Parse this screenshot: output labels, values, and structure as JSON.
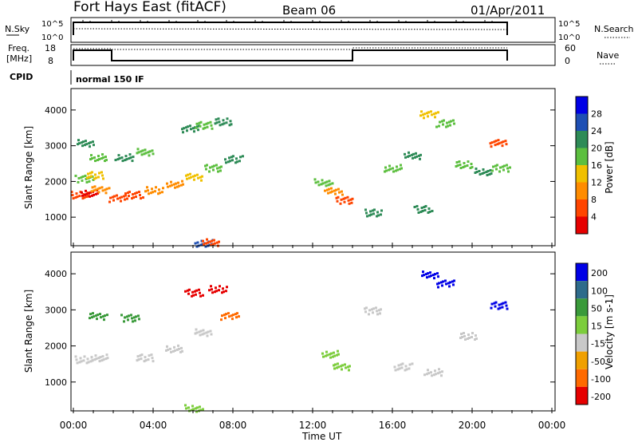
{
  "header": {
    "station": "Fort Hays East (fitACF)",
    "beam": "Beam 06",
    "date": "01/Apr/2011"
  },
  "panels": {
    "nsky_label": "N.Sky",
    "nsearch_label": "N.Search",
    "freq_label_1": "Freq.",
    "freq_label_2": "[MHz]",
    "nave_label": "Nave",
    "cpid_label": "CPID",
    "cpid_value": "normal 150 IF",
    "nsky_ticks": [
      "10^5",
      "10^0"
    ],
    "freq_ticks": [
      "18",
      "8"
    ],
    "nave_ticks": [
      "60",
      "0"
    ]
  },
  "colors": {
    "power": [
      "#0000e6",
      "#1e4fb4",
      "#2e8b57",
      "#5cbf3f",
      "#f0c000",
      "#ff8c00",
      "#ff4500",
      "#e60000"
    ],
    "velocity": [
      "#0000e6",
      "#2e6b8b",
      "#3a9a3a",
      "#7ccd3c",
      "#c8c8c8",
      "#f0a000",
      "#ff6a00",
      "#e60000"
    ]
  },
  "chart_data": [
    {
      "type": "heatmap",
      "title": "Power",
      "xlabel": "Time UT",
      "ylabel": "Slant Range [km]",
      "colorbar_label": "Power [dB]",
      "colorbar_ticks": [
        "28",
        "24",
        "20",
        "16",
        "12",
        "8",
        "4"
      ],
      "x_ticks": [
        "00:00",
        "04:00",
        "08:00",
        "12:00",
        "16:00",
        "20:00",
        "00:00"
      ],
      "y_ticks": [
        "1000",
        "2000",
        "3000",
        "4000"
      ],
      "xlim_hours": [
        0,
        24
      ],
      "ylim_km": [
        200,
        4600
      ],
      "cells": [
        {
          "t": 0.3,
          "r": 1650,
          "level": 6
        },
        {
          "t": 0.8,
          "r": 1700,
          "level": 7
        },
        {
          "t": 1.3,
          "r": 1800,
          "level": 5
        },
        {
          "t": 0.5,
          "r": 2100,
          "level": 3
        },
        {
          "t": 1.0,
          "r": 2200,
          "level": 4
        },
        {
          "t": 1.2,
          "r": 2700,
          "level": 3
        },
        {
          "t": 0.6,
          "r": 3100,
          "level": 2
        },
        {
          "t": 2.2,
          "r": 1550,
          "level": 6
        },
        {
          "t": 3.0,
          "r": 1650,
          "level": 6
        },
        {
          "t": 4.0,
          "r": 1780,
          "level": 5
        },
        {
          "t": 5.0,
          "r": 1950,
          "level": 5
        },
        {
          "t": 6.0,
          "r": 2150,
          "level": 4
        },
        {
          "t": 7.0,
          "r": 2400,
          "level": 3
        },
        {
          "t": 8.0,
          "r": 2650,
          "level": 2
        },
        {
          "t": 2.5,
          "r": 2700,
          "level": 2
        },
        {
          "t": 3.5,
          "r": 2850,
          "level": 3
        },
        {
          "t": 5.8,
          "r": 3500,
          "level": 2
        },
        {
          "t": 6.5,
          "r": 3600,
          "level": 3
        },
        {
          "t": 7.5,
          "r": 3700,
          "level": 2
        },
        {
          "t": 12.5,
          "r": 2000,
          "level": 3
        },
        {
          "t": 13.0,
          "r": 1750,
          "level": 5
        },
        {
          "t": 13.5,
          "r": 1500,
          "level": 6
        },
        {
          "t": 15.0,
          "r": 1150,
          "level": 2
        },
        {
          "t": 16.0,
          "r": 2400,
          "level": 3
        },
        {
          "t": 17.0,
          "r": 2750,
          "level": 2
        },
        {
          "t": 17.8,
          "r": 3900,
          "level": 4
        },
        {
          "t": 18.6,
          "r": 3650,
          "level": 3
        },
        {
          "t": 19.5,
          "r": 2500,
          "level": 3
        },
        {
          "t": 20.5,
          "r": 2300,
          "level": 2
        },
        {
          "t": 21.3,
          "r": 3100,
          "level": 6
        },
        {
          "t": 21.4,
          "r": 2400,
          "level": 3
        },
        {
          "t": 17.5,
          "r": 1250,
          "level": 2
        },
        {
          "t": 6.5,
          "r": 300,
          "level": 1
        },
        {
          "t": 6.8,
          "r": 320,
          "level": 6
        }
      ]
    },
    {
      "type": "heatmap",
      "title": "Velocity",
      "xlabel": "Time UT",
      "ylabel": "Slant Range [km]",
      "colorbar_label": "Velocity [m s-1]",
      "colorbar_ticks": [
        "200",
        "100",
        "50",
        "15",
        "-15",
        "-50",
        "-100",
        "-200"
      ],
      "x_ticks": [
        "00:00",
        "04:00",
        "08:00",
        "12:00",
        "16:00",
        "20:00",
        "00:00"
      ],
      "y_ticks": [
        "1000",
        "2000",
        "3000",
        "4000"
      ],
      "xlim_hours": [
        0,
        24
      ],
      "ylim_km": [
        200,
        4600
      ],
      "cells": [
        {
          "t": 0.5,
          "r": 1650,
          "level": 4
        },
        {
          "t": 1.3,
          "r": 1700,
          "level": 4
        },
        {
          "t": 1.2,
          "r": 2850,
          "level": 2
        },
        {
          "t": 2.8,
          "r": 2800,
          "level": 2
        },
        {
          "t": 3.5,
          "r": 1700,
          "level": 4
        },
        {
          "t": 5.0,
          "r": 1950,
          "level": 4
        },
        {
          "t": 6.5,
          "r": 2400,
          "level": 4
        },
        {
          "t": 7.8,
          "r": 2850,
          "level": 6
        },
        {
          "t": 6.0,
          "r": 3500,
          "level": 7
        },
        {
          "t": 7.2,
          "r": 3600,
          "level": 7
        },
        {
          "t": 12.8,
          "r": 1800,
          "level": 3
        },
        {
          "t": 13.4,
          "r": 1450,
          "level": 3
        },
        {
          "t": 15.0,
          "r": 3000,
          "level": 4
        },
        {
          "t": 16.5,
          "r": 1450,
          "level": 4
        },
        {
          "t": 18.0,
          "r": 1300,
          "level": 4
        },
        {
          "t": 17.8,
          "r": 4000,
          "level": 0
        },
        {
          "t": 18.6,
          "r": 3750,
          "level": 0
        },
        {
          "t": 21.3,
          "r": 3150,
          "level": 0
        },
        {
          "t": 19.8,
          "r": 2300,
          "level": 4
        },
        {
          "t": 6.0,
          "r": 300,
          "level": 3
        }
      ]
    }
  ]
}
